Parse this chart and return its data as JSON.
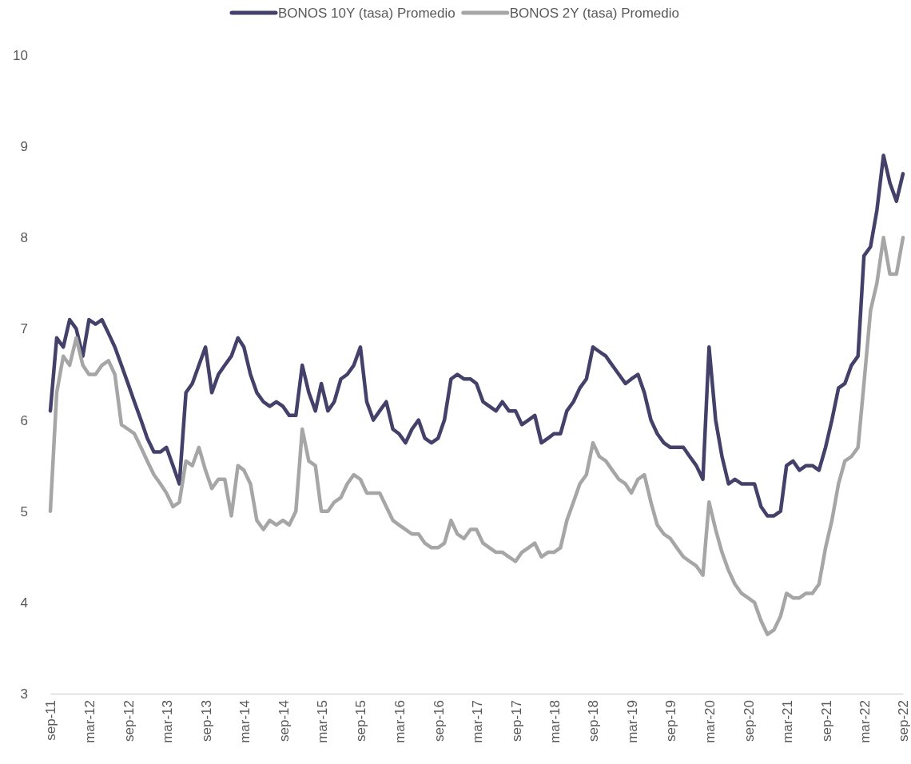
{
  "chart_data": {
    "type": "line",
    "legend": "top",
    "grid": false,
    "line_style": "solid",
    "marker": "none",
    "x": [
      "2011-09",
      "2011-10",
      "2011-11",
      "2011-12",
      "2012-01",
      "2012-02",
      "2012-03",
      "2012-04",
      "2012-05",
      "2012-06",
      "2012-07",
      "2012-08",
      "2012-09",
      "2012-10",
      "2012-11",
      "2012-12",
      "2013-01",
      "2013-02",
      "2013-03",
      "2013-04",
      "2013-05",
      "2013-06",
      "2013-07",
      "2013-08",
      "2013-09",
      "2013-10",
      "2013-11",
      "2013-12",
      "2014-01",
      "2014-02",
      "2014-03",
      "2014-04",
      "2014-05",
      "2014-06",
      "2014-07",
      "2014-08",
      "2014-09",
      "2014-10",
      "2014-11",
      "2014-12",
      "2015-01",
      "2015-02",
      "2015-03",
      "2015-04",
      "2015-05",
      "2015-06",
      "2015-07",
      "2015-08",
      "2015-09",
      "2015-10",
      "2015-11",
      "2015-12",
      "2016-01",
      "2016-02",
      "2016-03",
      "2016-04",
      "2016-05",
      "2016-06",
      "2016-07",
      "2016-08",
      "2016-09",
      "2016-10",
      "2016-11",
      "2016-12",
      "2017-01",
      "2017-02",
      "2017-03",
      "2017-04",
      "2017-05",
      "2017-06",
      "2017-07",
      "2017-08",
      "2017-09",
      "2017-10",
      "2017-11",
      "2017-12",
      "2018-01",
      "2018-02",
      "2018-03",
      "2018-04",
      "2018-05",
      "2018-06",
      "2018-07",
      "2018-08",
      "2018-09",
      "2018-10",
      "2018-11",
      "2018-12",
      "2019-01",
      "2019-02",
      "2019-03",
      "2019-04",
      "2019-05",
      "2019-06",
      "2019-07",
      "2019-08",
      "2019-09",
      "2019-10",
      "2019-11",
      "2019-12",
      "2020-01",
      "2020-02",
      "2020-03",
      "2020-04",
      "2020-05",
      "2020-06",
      "2020-07",
      "2020-08",
      "2020-09",
      "2020-10",
      "2020-11",
      "2020-12",
      "2021-01",
      "2021-02",
      "2021-03",
      "2021-04",
      "2021-05",
      "2021-06",
      "2021-07",
      "2021-08",
      "2021-09",
      "2021-10",
      "2021-11",
      "2021-12",
      "2022-01",
      "2022-02",
      "2022-03",
      "2022-04",
      "2022-05",
      "2022-06",
      "2022-07",
      "2022-08",
      "2022-09"
    ],
    "series": [
      {
        "name": "BONOS 10Y (tasa) Promedio",
        "color": "#43406a",
        "values": [
          6.1,
          6.9,
          6.8,
          7.1,
          7.0,
          6.7,
          7.1,
          7.05,
          7.1,
          6.95,
          6.8,
          6.6,
          6.4,
          6.2,
          6.0,
          5.8,
          5.65,
          5.65,
          5.7,
          5.5,
          5.3,
          6.3,
          6.4,
          6.6,
          6.8,
          6.3,
          6.5,
          6.6,
          6.7,
          6.9,
          6.8,
          6.5,
          6.3,
          6.2,
          6.15,
          6.2,
          6.15,
          6.05,
          6.05,
          6.6,
          6.3,
          6.1,
          6.4,
          6.1,
          6.2,
          6.45,
          6.5,
          6.6,
          6.8,
          6.2,
          6.0,
          6.1,
          6.2,
          5.9,
          5.85,
          5.75,
          5.9,
          6.0,
          5.8,
          5.75,
          5.8,
          6.0,
          6.45,
          6.5,
          6.45,
          6.45,
          6.4,
          6.2,
          6.15,
          6.1,
          6.2,
          6.1,
          6.1,
          5.95,
          6.0,
          6.05,
          5.75,
          5.8,
          5.85,
          5.85,
          6.1,
          6.2,
          6.35,
          6.45,
          6.8,
          6.75,
          6.7,
          6.6,
          6.5,
          6.4,
          6.45,
          6.5,
          6.3,
          6.0,
          5.85,
          5.75,
          5.7,
          5.7,
          5.7,
          5.6,
          5.5,
          5.35,
          6.8,
          6.0,
          5.6,
          5.3,
          5.35,
          5.3,
          5.3,
          5.3,
          5.05,
          4.95,
          4.95,
          5.0,
          5.5,
          5.55,
          5.45,
          5.5,
          5.5,
          5.45,
          5.7,
          6.0,
          6.35,
          6.4,
          6.6,
          6.7,
          7.8,
          7.9,
          8.3,
          8.9,
          8.6,
          8.4,
          8.7
        ]
      },
      {
        "name": "BONOS 2Y (tasa) Promedio",
        "color": "#a6a6a6",
        "values": [
          5.0,
          6.3,
          6.7,
          6.6,
          6.9,
          6.6,
          6.5,
          6.5,
          6.6,
          6.65,
          6.5,
          5.95,
          5.9,
          5.85,
          5.7,
          5.55,
          5.4,
          5.3,
          5.2,
          5.05,
          5.1,
          5.55,
          5.5,
          5.7,
          5.45,
          5.25,
          5.35,
          5.35,
          4.95,
          5.5,
          5.45,
          5.3,
          4.9,
          4.8,
          4.9,
          4.85,
          4.9,
          4.85,
          5.0,
          5.9,
          5.55,
          5.5,
          5.0,
          5.0,
          5.1,
          5.15,
          5.3,
          5.4,
          5.35,
          5.2,
          5.2,
          5.2,
          5.05,
          4.9,
          4.85,
          4.8,
          4.75,
          4.75,
          4.65,
          4.6,
          4.6,
          4.65,
          4.9,
          4.75,
          4.7,
          4.8,
          4.8,
          4.65,
          4.6,
          4.55,
          4.55,
          4.5,
          4.45,
          4.55,
          4.6,
          4.65,
          4.5,
          4.55,
          4.55,
          4.6,
          4.9,
          5.1,
          5.3,
          5.4,
          5.75,
          5.6,
          5.55,
          5.45,
          5.35,
          5.3,
          5.2,
          5.35,
          5.4,
          5.1,
          4.85,
          4.75,
          4.7,
          4.6,
          4.5,
          4.45,
          4.4,
          4.3,
          5.1,
          4.8,
          4.55,
          4.35,
          4.2,
          4.1,
          4.05,
          4.0,
          3.8,
          3.65,
          3.7,
          3.85,
          4.1,
          4.05,
          4.05,
          4.1,
          4.1,
          4.2,
          4.6,
          4.9,
          5.3,
          5.55,
          5.6,
          5.7,
          6.4,
          7.2,
          7.5,
          8.0,
          7.6,
          7.6,
          8.0
        ]
      }
    ],
    "xlim": [
      "2011-09",
      "2022-09"
    ],
    "xticks": [
      {
        "value": "2011-09",
        "label": "sep-11"
      },
      {
        "value": "2012-03",
        "label": "mar-12"
      },
      {
        "value": "2012-09",
        "label": "sep-12"
      },
      {
        "value": "2013-03",
        "label": "mar-13"
      },
      {
        "value": "2013-09",
        "label": "sep-13"
      },
      {
        "value": "2014-03",
        "label": "mar-14"
      },
      {
        "value": "2014-09",
        "label": "sep-14"
      },
      {
        "value": "2015-03",
        "label": "mar-15"
      },
      {
        "value": "2015-09",
        "label": "sep-15"
      },
      {
        "value": "2016-03",
        "label": "mar-16"
      },
      {
        "value": "2016-09",
        "label": "sep-16"
      },
      {
        "value": "2017-03",
        "label": "mar-17"
      },
      {
        "value": "2017-09",
        "label": "sep-17"
      },
      {
        "value": "2018-03",
        "label": "mar-18"
      },
      {
        "value": "2018-09",
        "label": "sep-18"
      },
      {
        "value": "2019-03",
        "label": "mar-19"
      },
      {
        "value": "2019-09",
        "label": "sep-19"
      },
      {
        "value": "2020-03",
        "label": "mar-20"
      },
      {
        "value": "2020-09",
        "label": "sep-20"
      },
      {
        "value": "2021-03",
        "label": "mar-21"
      },
      {
        "value": "2021-09",
        "label": "sep-21"
      },
      {
        "value": "2022-03",
        "label": "mar-22"
      },
      {
        "value": "2022-09",
        "label": "sep-22"
      }
    ],
    "ylim": [
      3,
      10
    ],
    "yticks": [
      3,
      4,
      5,
      6,
      7,
      8,
      9,
      10
    ]
  }
}
